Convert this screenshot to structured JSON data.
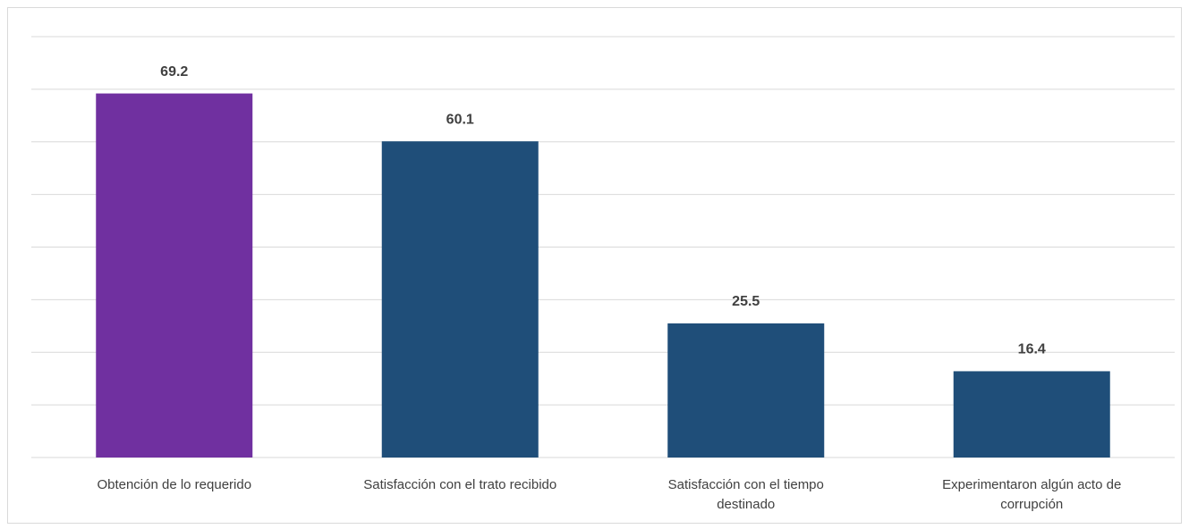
{
  "chart_data": {
    "type": "bar",
    "categories": [
      "Obtención de lo requerido",
      "Satisfacción con el trato recibido",
      "Satisfacción con el tiempo\ndestinado",
      "Experimentaron algún acto de\ncorrupción"
    ],
    "values": [
      69.2,
      60.1,
      25.5,
      16.4
    ],
    "colors": [
      "#7030a0",
      "#1f4e79",
      "#1f4e79",
      "#1f4e79"
    ],
    "ylim": [
      0,
      80
    ],
    "yticks": [
      0,
      10,
      20,
      30,
      40,
      50,
      60,
      70,
      80
    ],
    "grid": true
  }
}
